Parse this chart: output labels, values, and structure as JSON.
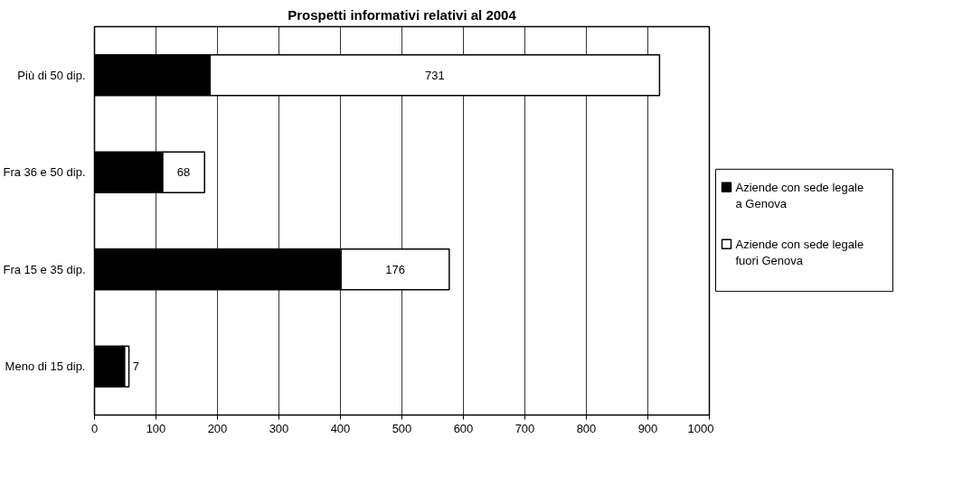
{
  "chart_data": {
    "type": "bar",
    "orientation": "horizontal",
    "stacked": true,
    "title": "Prospetti informativi relativi al 2004",
    "categories": [
      "Più di 50 dip.",
      "Fra 36 e 50 dip.",
      "Fra 15 e 35 dip.",
      "Meno di 15 dip."
    ],
    "series": [
      {
        "name": "Aziende con sede legale\na Genova",
        "color": "#000000",
        "values": [
          188,
          111,
          401,
          49
        ]
      },
      {
        "name": "Aziende con sede legale\nfuori Genova",
        "color": "#ffffff",
        "values": [
          731,
          68,
          176,
          7
        ],
        "value_labels": [
          "731",
          "68",
          "176",
          "7"
        ]
      }
    ],
    "xlim": [
      0,
      1000
    ],
    "xticks": [
      0,
      100,
      200,
      300,
      400,
      500,
      600,
      700,
      800,
      900,
      1000
    ],
    "grid": "x",
    "legend": "right"
  }
}
